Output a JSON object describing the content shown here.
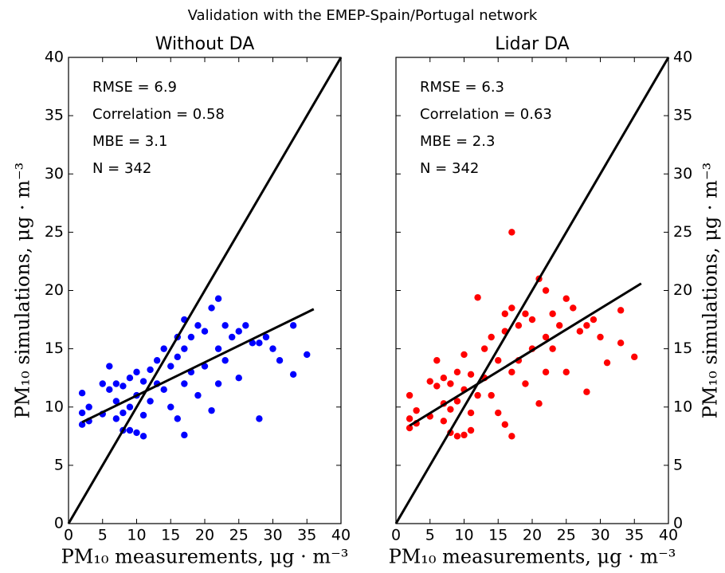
{
  "title": "Validation with the EMEP-Spain/Portugal network",
  "chart_data": [
    {
      "type": "scatter",
      "title": "Without DA",
      "color": "#0000ff",
      "xlabel": "PM₁₀ measurements,  μg · m⁻³",
      "ylabel": "PM₁₀ simulations,  μg · m⁻³",
      "yaxis_side": "left",
      "xlim": [
        0,
        40
      ],
      "ylim": [
        0,
        40
      ],
      "xticks": [
        0,
        5,
        10,
        15,
        20,
        25,
        30,
        35,
        40
      ],
      "yticks": [
        0,
        5,
        10,
        15,
        20,
        25,
        30,
        35,
        40
      ],
      "annotations": [
        "RMSE = 6.9",
        "Correlation = 0.58",
        "MBE = 3.1",
        "N = 342"
      ],
      "lines": [
        {
          "x": [
            0,
            40
          ],
          "y": [
            0,
            40
          ]
        },
        {
          "x": [
            2,
            36
          ],
          "y": [
            8.7,
            18.4
          ]
        }
      ],
      "x": [
        2,
        2,
        2,
        3,
        3,
        5,
        5,
        6,
        6,
        7,
        7,
        7,
        8,
        8,
        8,
        9,
        9,
        9,
        10,
        10,
        10,
        11,
        11,
        11,
        12,
        12,
        13,
        13,
        14,
        14,
        15,
        15,
        16,
        16,
        16,
        17,
        17,
        17,
        17,
        18,
        18,
        19,
        19,
        20,
        20,
        21,
        21,
        22,
        22,
        22,
        23,
        23,
        24,
        25,
        25,
        26,
        27,
        28,
        28,
        29,
        30,
        31,
        33,
        33,
        35
      ],
      "values": [
        11.2,
        9.5,
        8.5,
        10,
        8.8,
        12,
        9.4,
        11.5,
        13.5,
        12,
        9,
        10.5,
        11.8,
        8,
        9.5,
        12.5,
        10,
        8,
        11,
        13,
        7.8,
        12.2,
        9.3,
        7.5,
        13.2,
        10.5,
        14,
        12,
        15,
        11.5,
        13.5,
        10,
        14.3,
        16,
        9,
        15,
        17.5,
        12,
        7.6,
        16,
        13,
        17,
        11,
        16.5,
        13.5,
        18.5,
        9.7,
        19.3,
        15,
        12,
        17,
        14,
        16,
        16.5,
        12.5,
        17,
        15.5,
        9,
        15.5,
        16,
        15,
        14,
        17,
        12.8,
        14.5
      ]
    },
    {
      "type": "scatter",
      "title": "Lidar DA",
      "color": "#ff0000",
      "xlabel": "PM₁₀ measurements,  μg · m⁻³",
      "ylabel": "PM₁₀ simulations,  μg · m⁻³",
      "yaxis_side": "right",
      "xlim": [
        0,
        40
      ],
      "ylim": [
        0,
        40
      ],
      "xticks": [
        0,
        5,
        10,
        15,
        20,
        25,
        30,
        35,
        40
      ],
      "yticks": [
        0,
        5,
        10,
        15,
        20,
        25,
        30,
        35,
        40
      ],
      "annotations": [
        "RMSE = 6.3",
        "Correlation = 0.63",
        "MBE = 2.3",
        "N = 342"
      ],
      "lines": [
        {
          "x": [
            0,
            40
          ],
          "y": [
            0,
            40
          ]
        },
        {
          "x": [
            2,
            36
          ],
          "y": [
            8.4,
            20.6
          ]
        }
      ],
      "x": [
        2,
        2,
        2,
        3,
        3,
        5,
        5,
        6,
        6,
        7,
        7,
        7,
        8,
        8,
        8,
        9,
        9,
        9,
        10,
        10,
        10,
        11,
        11,
        11,
        12,
        12,
        13,
        13,
        14,
        14,
        15,
        15,
        16,
        16,
        16,
        17,
        17,
        17,
        17,
        18,
        18,
        19,
        19,
        20,
        20,
        21,
        21,
        22,
        22,
        22,
        23,
        23,
        24,
        25,
        25,
        26,
        27,
        28,
        28,
        29,
        30,
        31,
        33,
        33,
        35
      ],
      "values": [
        11,
        9,
        8.2,
        9.7,
        8.6,
        12.2,
        9.2,
        11.8,
        14,
        12.5,
        8.8,
        10.3,
        12,
        7.8,
        9.8,
        13,
        10.5,
        7.5,
        11.5,
        14.5,
        7.6,
        12.8,
        9.5,
        8,
        19.4,
        11,
        15,
        12.5,
        16,
        11,
        14,
        9.5,
        18,
        16.5,
        8.5,
        25,
        18.5,
        13,
        7.5,
        17,
        14,
        18,
        12,
        17.5,
        15,
        21,
        10.3,
        20,
        16,
        13,
        18,
        15,
        17,
        19.3,
        13,
        18.5,
        16.5,
        11.3,
        17,
        17.5,
        16,
        13.8,
        18.3,
        15.5,
        14.3
      ]
    }
  ]
}
